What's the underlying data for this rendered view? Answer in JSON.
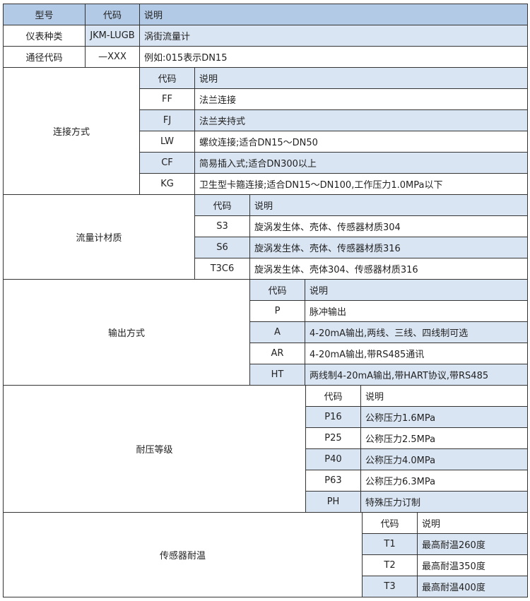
{
  "colors": {
    "header": "#b3cae6",
    "highlight": "#dae5f3",
    "border": "#333333"
  },
  "header": {
    "model": "型号",
    "code": "代码",
    "desc": "说明"
  },
  "top_rows": [
    {
      "label": "仪表种类",
      "code": "JKM-LUGB",
      "desc": "涡街流量计",
      "code_highlight": true
    },
    {
      "label": "通径代码",
      "code": "—XXX",
      "desc": "例如:015表示DN15",
      "code_highlight": false
    }
  ],
  "sections": [
    {
      "label": "连接方式",
      "code_header": "代码",
      "desc_header": "说明",
      "header_highlight": true,
      "rows": [
        {
          "code": "FF",
          "desc": "法兰连接",
          "highlight": false
        },
        {
          "code": "FJ",
          "desc": "法兰夹持式",
          "highlight": true
        },
        {
          "code": "LW",
          "desc": "螺纹连接;适合DN15～DN50",
          "highlight": false
        },
        {
          "code": "CF",
          "desc": "简易插入式;适合DN300以上",
          "highlight": true
        },
        {
          "code": "KG",
          "desc": "卫生型卡箍连接;适合DN15～DN100,工作压力1.0MPa以下",
          "highlight": false
        }
      ]
    },
    {
      "label": "流量计材质",
      "code_header": "代码",
      "desc_header": "说明",
      "header_highlight": true,
      "rows": [
        {
          "code": "S3",
          "desc": "旋涡发生体、壳体、传感器材质304",
          "highlight": false
        },
        {
          "code": "S6",
          "desc": "旋涡发生体、壳体、传感器材质316",
          "highlight": true
        },
        {
          "code": "T3C6",
          "desc": "旋涡发生体、壳体304、传感器材质316",
          "highlight": false
        }
      ]
    },
    {
      "label": "输出方式",
      "code_header": "代码",
      "desc_header": "说明",
      "header_highlight": true,
      "rows": [
        {
          "code": "P",
          "desc": "脉冲输出",
          "highlight": false
        },
        {
          "code": "A",
          "desc": "4-20mA输出,两线、三线、四线制可选",
          "highlight": true
        },
        {
          "code": "AR",
          "desc": "4-20mA输出,带RS485通讯",
          "highlight": false
        },
        {
          "code": "HT",
          "desc": "两线制4-20mA输出,带HART协议,带RS485",
          "highlight": true
        }
      ]
    },
    {
      "label": "耐压等级",
      "code_header": "代码",
      "desc_header": "说明",
      "header_highlight": false,
      "rows": [
        {
          "code": "P16",
          "desc": "公称压力1.6MPa",
          "highlight": true
        },
        {
          "code": "P25",
          "desc": "公称压力2.5MPa",
          "highlight": false
        },
        {
          "code": "P40",
          "desc": "公称压力4.0MPa",
          "highlight": true
        },
        {
          "code": "P63",
          "desc": "公称压力6.3MPa",
          "highlight": false
        },
        {
          "code": "PH",
          "desc": "特殊压力订制",
          "highlight": true
        }
      ]
    },
    {
      "label": "传感器耐温",
      "code_header": "代码",
      "desc_header": "说明",
      "header_highlight": false,
      "rows": [
        {
          "code": "T1",
          "desc": "最高耐温260度",
          "highlight": true
        },
        {
          "code": "T2",
          "desc": "最高耐温350度",
          "highlight": false
        },
        {
          "code": "T3",
          "desc": "最高耐温400度",
          "highlight": true
        }
      ]
    }
  ]
}
